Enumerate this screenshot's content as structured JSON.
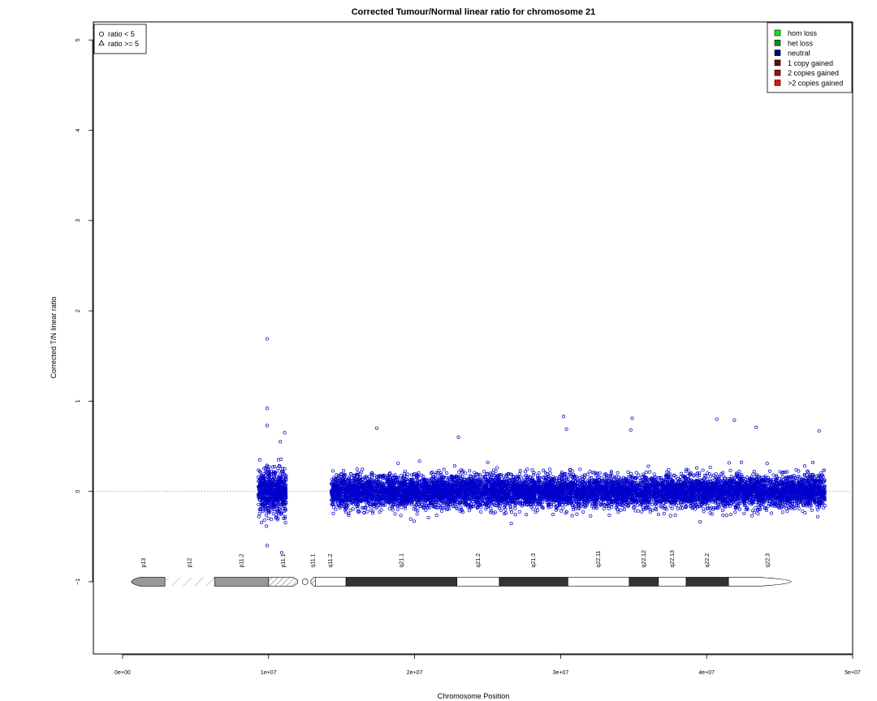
{
  "chart_data": {
    "type": "scatter",
    "title": "Corrected Tumour/Normal linear ratio for chromosome  21",
    "xlabel": "Chromosome Position",
    "ylabel": "Corrected T/N linear ratio",
    "xlim": [
      -2000000,
      50000000
    ],
    "ylim": [
      -1.8,
      5.2
    ],
    "x_ticks": [
      0,
      10000000,
      20000000,
      30000000,
      40000000,
      50000000
    ],
    "x_tick_labels": [
      "0e+00",
      "1e+07",
      "2e+07",
      "3e+07",
      "4e+07",
      "5e+07"
    ],
    "y_ticks": [
      -1,
      0,
      1,
      2,
      3,
      4,
      5
    ],
    "y_tick_labels": [
      "−1",
      "0",
      "1",
      "2",
      "3",
      "4",
      "5"
    ],
    "reference_line_y": 0,
    "point_color": "#0000cc",
    "shape_legend": {
      "placement": "top-left",
      "entries": [
        {
          "label": "ratio < 5",
          "symbol": "circle"
        },
        {
          "label": "ratio >= 5",
          "symbol": "triangle"
        }
      ]
    },
    "color_legend": {
      "placement": "top-right",
      "entries": [
        {
          "label": "hom loss",
          "color": "#00ee00"
        },
        {
          "label": "het loss",
          "color": "#009900"
        },
        {
          "label": "neutral",
          "color": "#00008b"
        },
        {
          "label": "1 copy gained",
          "color": "#6b0a0a"
        },
        {
          "label": "2 copies gained",
          "color": "#a01010"
        },
        {
          "label": ">2 copies gained",
          "color": "#ee1111"
        }
      ]
    },
    "point_clusters": [
      {
        "x_start": 9300000,
        "x_end": 11200000,
        "y_mean": 0.0,
        "y_spread": 0.22,
        "count": 650
      },
      {
        "x_start": 14300000,
        "x_end": 48100000,
        "y_mean": 0.0,
        "y_spread": 0.16,
        "count": 9000
      }
    ],
    "outlier_points": [
      {
        "x": 9900000,
        "y": 1.69
      },
      {
        "x": 9900000,
        "y": 0.92
      },
      {
        "x": 9900000,
        "y": 0.73
      },
      {
        "x": 11100000,
        "y": 0.65
      },
      {
        "x": 10800000,
        "y": 0.55
      },
      {
        "x": 9900000,
        "y": -0.6
      },
      {
        "x": 10900000,
        "y": -0.68
      },
      {
        "x": 17400000,
        "y": 0.7
      },
      {
        "x": 23000000,
        "y": 0.6
      },
      {
        "x": 30200000,
        "y": 0.83
      },
      {
        "x": 30400000,
        "y": 0.69
      },
      {
        "x": 34900000,
        "y": 0.81
      },
      {
        "x": 34800000,
        "y": 0.68
      },
      {
        "x": 40700000,
        "y": 0.8
      },
      {
        "x": 41900000,
        "y": 0.79
      },
      {
        "x": 43400000,
        "y": 0.71
      },
      {
        "x": 47700000,
        "y": 0.67
      }
    ],
    "ideogram": {
      "y": -1,
      "centromere": 12500000,
      "bands": [
        {
          "name": "p13",
          "start": 0,
          "end": 2900000,
          "style": "gpos"
        },
        {
          "name": "p12",
          "start": 2900000,
          "end": 6300000,
          "style": "stalk"
        },
        {
          "name": "p11.2",
          "start": 6300000,
          "end": 10000000,
          "style": "gpos"
        },
        {
          "name": "p11.1",
          "start": 10000000,
          "end": 12000000,
          "style": "acen"
        },
        {
          "name": "q11.1",
          "start": 12900000,
          "end": 13200000,
          "style": "acen"
        },
        {
          "name": "q11.2",
          "start": 13200000,
          "end": 15300000,
          "style": "gneg"
        },
        {
          "name": "q21.1",
          "start": 15300000,
          "end": 22900000,
          "style": "gdark"
        },
        {
          "name": "q21.2",
          "start": 22900000,
          "end": 25800000,
          "style": "gneg"
        },
        {
          "name": "q21.3",
          "start": 25800000,
          "end": 30500000,
          "style": "gdark"
        },
        {
          "name": "q22.11",
          "start": 30500000,
          "end": 34700000,
          "style": "gneg"
        },
        {
          "name": "q22.12",
          "start": 34700000,
          "end": 36700000,
          "style": "gdark"
        },
        {
          "name": "q22.13",
          "start": 36700000,
          "end": 38600000,
          "style": "gneg"
        },
        {
          "name": "q22.2",
          "start": 38600000,
          "end": 41500000,
          "style": "gdark"
        },
        {
          "name": "q22.3",
          "start": 41500000,
          "end": 46900000,
          "style": "gneg"
        }
      ]
    }
  }
}
